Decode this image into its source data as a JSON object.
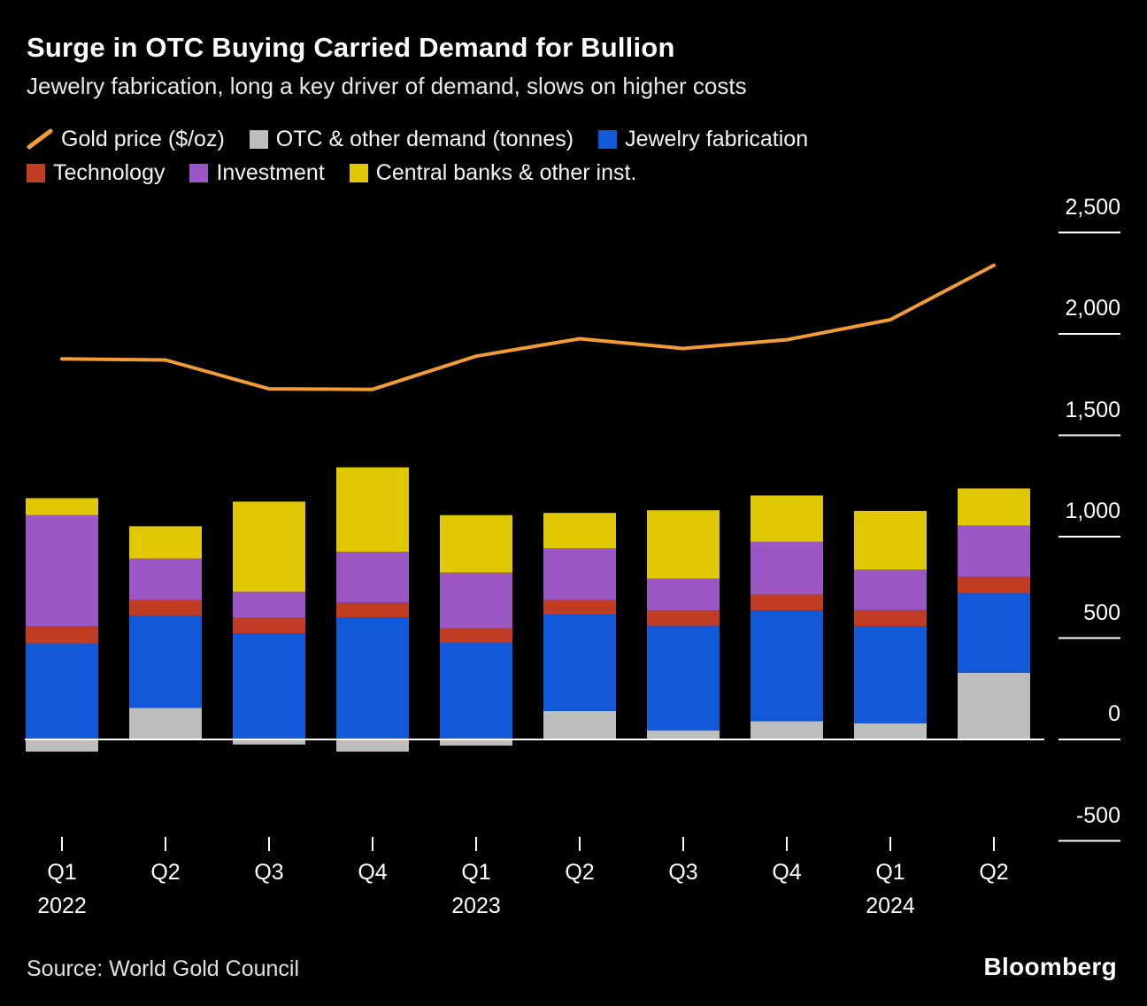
{
  "header": {
    "title": "Surge in OTC Buying Carried Demand for Bullion",
    "subtitle": "Jewelry fabrication, long a key driver of demand, slows on higher costs"
  },
  "legend": {
    "rows": [
      [
        {
          "id": "gold-price",
          "label": "Gold price ($/oz)",
          "swatch": "line",
          "color": "#F29C36"
        },
        {
          "id": "otc-demand",
          "label": "OTC & other demand (tonnes)",
          "swatch": "square",
          "color": "#BDBDBD"
        },
        {
          "id": "jewelry-fabrication",
          "label": "Jewelry fabrication",
          "swatch": "square",
          "color": "#1259D9"
        }
      ],
      [
        {
          "id": "technology",
          "label": "Technology",
          "swatch": "square",
          "color": "#C03D24"
        },
        {
          "id": "investment",
          "label": "Investment",
          "swatch": "square",
          "color": "#9B58C5"
        },
        {
          "id": "central-banks",
          "label": "Central banks & other inst.",
          "swatch": "square",
          "color": "#E0C902"
        }
      ]
    ]
  },
  "chart_data": {
    "type": "bar",
    "subtype": "stacked-bars-with-line-overlay",
    "title": "Surge in OTC Buying Carried Demand for Bullion",
    "subtitle": "Jewelry fabrication, long a key driver of demand, slows on higher costs",
    "categories": [
      "Q1",
      "Q2",
      "Q3",
      "Q4",
      "Q1",
      "Q2",
      "Q3",
      "Q4",
      "Q1",
      "Q2"
    ],
    "year_labels": [
      {
        "index": 0,
        "label": "2022"
      },
      {
        "index": 4,
        "label": "2023"
      },
      {
        "index": 8,
        "label": "2024"
      }
    ],
    "series": [
      {
        "name": "OTC & other demand (tonnes)",
        "id": "otc-demand",
        "color": "#BDBDBD",
        "values": [
          -60,
          155,
          -25,
          -60,
          -30,
          140,
          45,
          90,
          80,
          329
        ]
      },
      {
        "name": "Jewelry fabrication",
        "id": "jewelry-fabrication",
        "color": "#1259D9",
        "values": [
          474,
          453,
          523,
          602,
          478,
          476,
          516,
          545,
          479,
          391
        ]
      },
      {
        "name": "Technology",
        "id": "technology",
        "color": "#C03D24",
        "values": [
          82,
          78,
          77,
          72,
          70,
          70,
          75,
          81,
          79,
          81
        ]
      },
      {
        "name": "Investment",
        "id": "investment",
        "color": "#9B58C5",
        "values": [
          551,
          206,
          128,
          251,
          274,
          256,
          157,
          258,
          199,
          254
        ]
      },
      {
        "name": "Central banks & other inst.",
        "id": "central-banks",
        "color": "#E0C902",
        "values": [
          83,
          159,
          445,
          417,
          284,
          175,
          337,
          229,
          290,
          183
        ]
      }
    ],
    "line": {
      "name": "Gold price ($/oz)",
      "id": "gold-price",
      "color": "#F29C36",
      "values": [
        1877,
        1871,
        1729,
        1726,
        1890,
        1976,
        1928,
        1971,
        2070,
        2338
      ]
    },
    "y_axis": {
      "ticks": [
        -500,
        0,
        500,
        1000,
        1500,
        2000,
        2500
      ],
      "tick_labels": [
        "-500",
        "0",
        "500",
        "1,000",
        "1,500",
        "2,000",
        "2,500"
      ],
      "ylim": [
        -650,
        2650
      ],
      "side": "right"
    },
    "grid": false,
    "legend_position": "top",
    "axis_color": "#FFFFFF"
  },
  "footer": {
    "source": "Source:  World Gold Council",
    "brand": "Bloomberg"
  }
}
